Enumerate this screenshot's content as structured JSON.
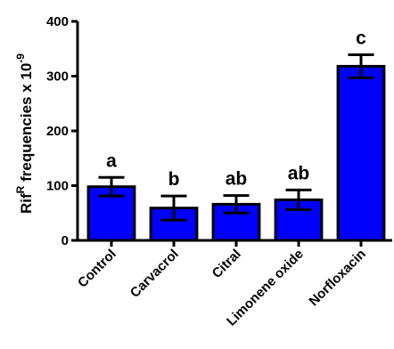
{
  "chart_data": {
    "type": "bar",
    "categories": [
      "Control",
      "Carvacrol",
      "Citral",
      "Limonene oxide",
      "Norfloxacin"
    ],
    "values": [
      98,
      59,
      66,
      74,
      318
    ],
    "error_bars": [
      17,
      22,
      16,
      18,
      21
    ],
    "significance_letters": [
      "a",
      "b",
      "ab",
      "ab",
      "c"
    ],
    "ylabel": {
      "base": "Rif",
      "superscript": "R",
      "text": " frequencies x 10",
      "exponent": "-9"
    },
    "ylim": [
      0,
      400
    ],
    "yticks": [
      0,
      100,
      200,
      300,
      400
    ],
    "ytick_labels": [
      "0",
      "100",
      "200",
      "300",
      "400"
    ],
    "grid": false,
    "legend": "none",
    "bar_color": "#0000ff",
    "edge_color": "#000000"
  }
}
